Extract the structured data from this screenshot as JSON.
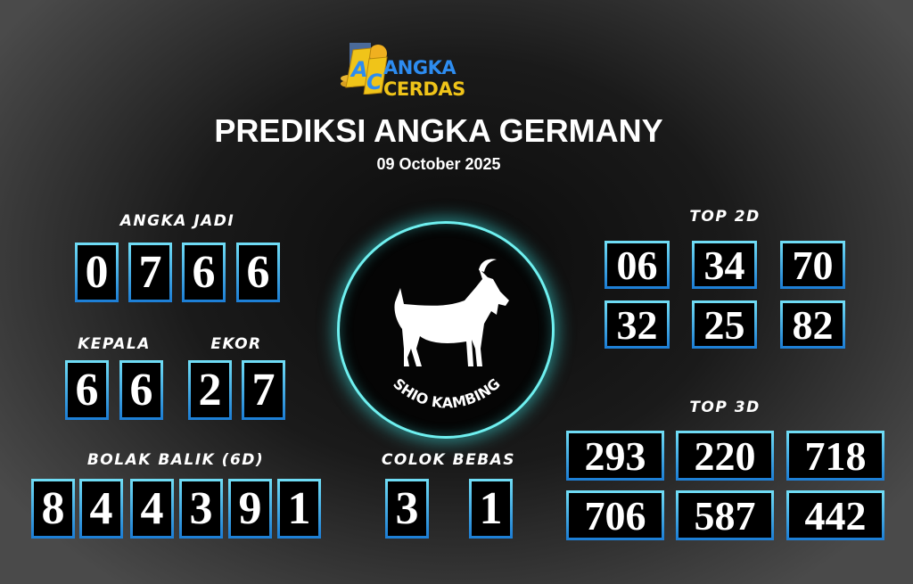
{
  "logo": {
    "part1": "ANGKA",
    "part2": "CERDAS",
    "badge": "AC"
  },
  "title": "PREDIKSI ANGKA GERMANY",
  "date": "09 October 2025",
  "angka_jadi": {
    "label": "ANGKA JADI",
    "digits": [
      "0",
      "7",
      "6",
      "6"
    ]
  },
  "kepala": {
    "label": "KEPALA",
    "digits": [
      "6",
      "6"
    ]
  },
  "ekor": {
    "label": "EKOR",
    "digits": [
      "2",
      "7"
    ]
  },
  "bolak_balik": {
    "label": "BOLAK BALIK (6D)",
    "digits": [
      "8",
      "4",
      "4",
      "3",
      "9",
      "1"
    ]
  },
  "colok_bebas": {
    "label": "COLOK BEBAS",
    "digits": [
      "3",
      "1"
    ]
  },
  "shio": {
    "label": "SHIO KAMBING",
    "icon": "goat-icon",
    "ring_color": "#6ff0f0"
  },
  "top2d": {
    "label": "TOP 2D",
    "values": [
      "06",
      "34",
      "70",
      "32",
      "25",
      "82"
    ]
  },
  "top3d": {
    "label": "TOP 3D",
    "values": [
      "293",
      "220",
      "718",
      "706",
      "587",
      "442"
    ]
  }
}
